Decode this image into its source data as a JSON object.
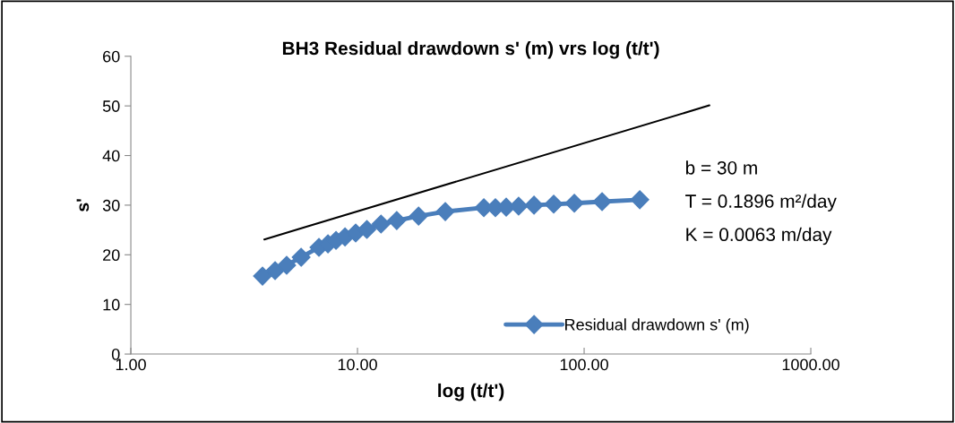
{
  "chart_data": {
    "type": "line",
    "title": "BH3 Residual drawdown s' (m) vrs log (t/t')",
    "xlabel": "log (t/t')",
    "ylabel": "s'",
    "log": "x",
    "xlim": [
      1,
      1000
    ],
    "xticks": [
      {
        "value": 1,
        "label": "1.00"
      },
      {
        "value": 10,
        "label": "10.00"
      },
      {
        "value": 100,
        "label": "100.00"
      },
      {
        "value": 1000,
        "label": "1000.00"
      }
    ],
    "ylim": [
      0,
      60
    ],
    "yticks": [
      0,
      10,
      20,
      30,
      40,
      50,
      60
    ],
    "grid": false,
    "legend": "lower right",
    "series": [
      {
        "name": "Residual drawdown s' (m)",
        "color": "#4a7ebb",
        "marker": "diamond",
        "line_style": "solid",
        "x": [
          3.81,
          4.33,
          4.87,
          5.64,
          6.76,
          7.41,
          8.04,
          8.81,
          9.82,
          11.0,
          12.7,
          14.9,
          18.6,
          24.4,
          36.1,
          40.6,
          45.3,
          51.4,
          60.1,
          73.4,
          90.5,
          120,
          176
        ],
        "values": [
          15.7,
          16.8,
          17.9,
          19.5,
          21.5,
          22.2,
          22.9,
          23.6,
          24.4,
          25.1,
          26.2,
          26.9,
          27.8,
          28.7,
          29.5,
          29.5,
          29.6,
          29.8,
          30.0,
          30.2,
          30.4,
          30.7,
          31.1
        ]
      },
      {
        "color": "#000000",
        "marker": "none",
        "line_style": "solid",
        "x": [
          3.88,
          357
        ],
        "values": [
          23.1,
          50.1
        ]
      }
    ],
    "annotations": [
      "b = 30 m",
      "T = 0.1896 m²/day",
      "K = 0.0063 m/day"
    ]
  }
}
